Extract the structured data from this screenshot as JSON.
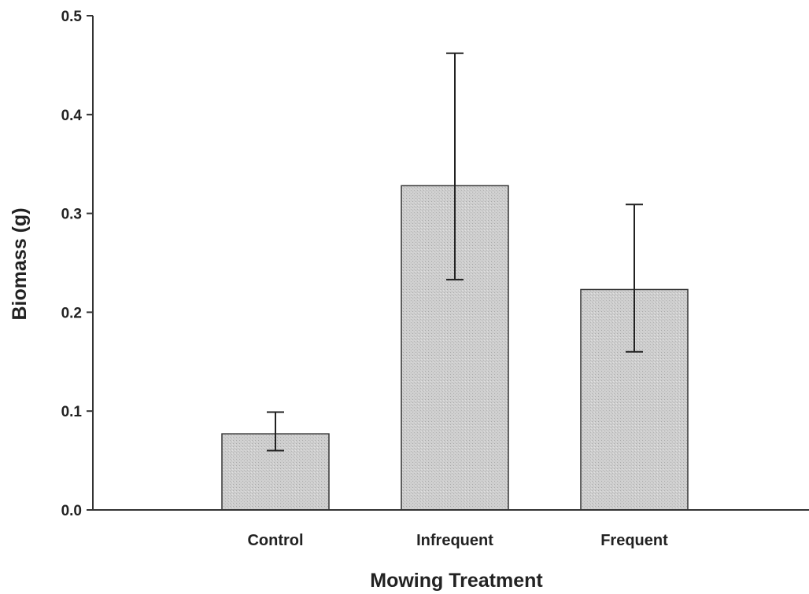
{
  "chart_data": {
    "type": "bar",
    "title": "",
    "xlabel": "Mowing Treatment",
    "ylabel": "Biomass (g)",
    "ylim": [
      0,
      0.5
    ],
    "yticks": [
      "0.0",
      "0.1",
      "0.2",
      "0.3",
      "0.4",
      "0.5"
    ],
    "categories": [
      "Control",
      "Infrequent",
      "Frequent"
    ],
    "values": [
      0.077,
      0.328,
      0.223
    ],
    "error_low": [
      0.06,
      0.233,
      0.16
    ],
    "error_high": [
      0.099,
      0.462,
      0.309
    ],
    "bar_color": "#cfcfcf",
    "grid": false,
    "legend": "none"
  }
}
